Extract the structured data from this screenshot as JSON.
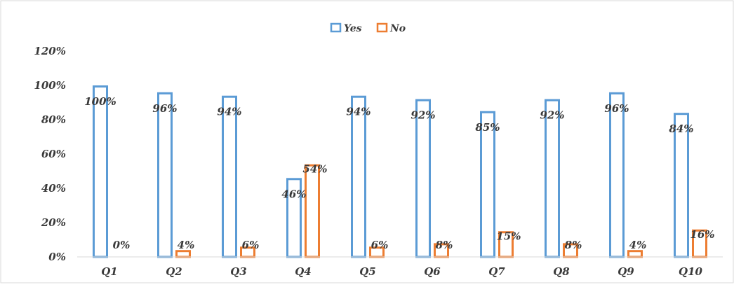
{
  "chart_data": {
    "type": "bar",
    "categories": [
      "Q1",
      "Q2",
      "Q3",
      "Q4",
      "Q5",
      "Q6",
      "Q7",
      "Q8",
      "Q9",
      "Q10"
    ],
    "series": [
      {
        "name": "Yes",
        "color": "#5b9bd5",
        "values": [
          100,
          96,
          94,
          46,
          94,
          92,
          85,
          92,
          96,
          84
        ],
        "labels": [
          "100%",
          "96%",
          "94%",
          "46%",
          "94%",
          "92%",
          "85%",
          "92%",
          "96%",
          "84%"
        ]
      },
      {
        "name": "No",
        "color": "#ed7d31",
        "values": [
          0,
          4,
          6,
          54,
          6,
          8,
          15,
          8,
          4,
          16
        ],
        "labels": [
          "0%",
          "4%",
          "6%",
          "54%",
          "6%",
          "8%",
          "15%",
          "8%",
          "4%",
          "16%"
        ]
      }
    ],
    "y_ticks": [
      "0%",
      "20%",
      "40%",
      "60%",
      "80%",
      "100%",
      "120%"
    ],
    "ylim": [
      0,
      120
    ],
    "grid": false,
    "legend": "top-center",
    "bar_style": "outlined",
    "title": "",
    "xlabel": "",
    "ylabel": ""
  }
}
